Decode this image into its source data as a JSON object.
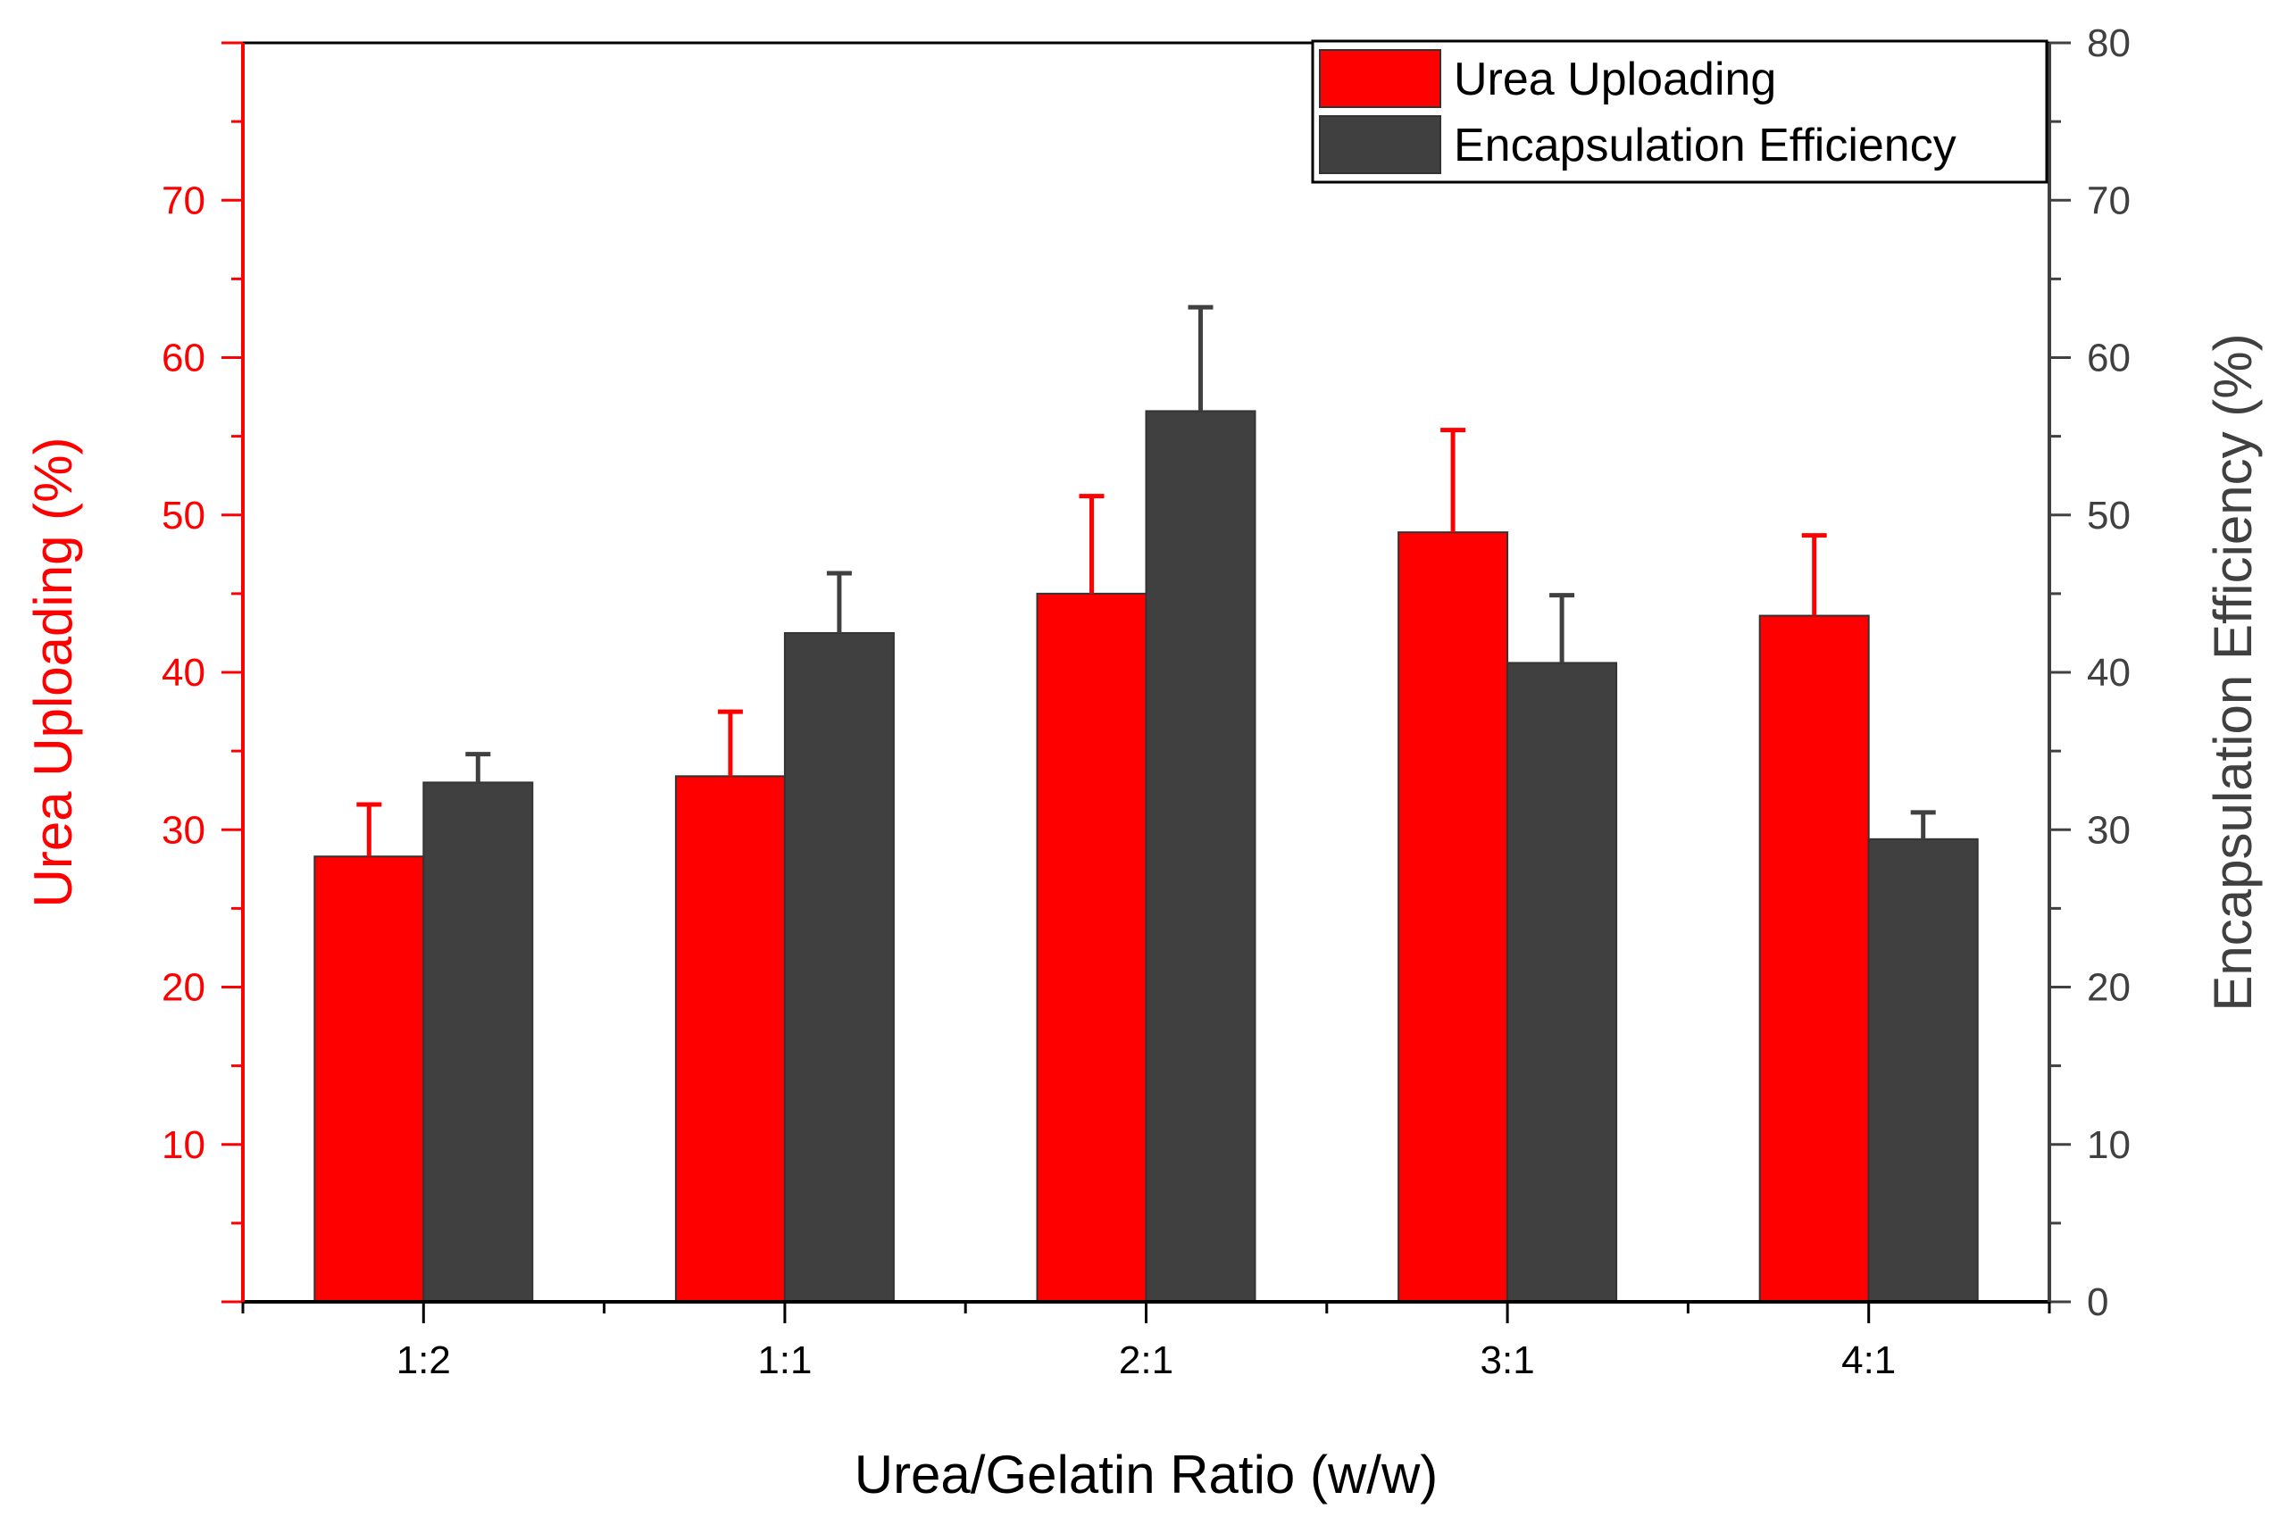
{
  "chart_data": {
    "type": "bar",
    "title": "",
    "xlabel": "Urea/Gelatin Ratio (w/w)",
    "ylabel_left": "Urea Uploading (%)",
    "ylabel_right": "Encapsulation Efficiency (%)",
    "categories": [
      "1:2",
      "1:1",
      "2:1",
      "3:1",
      "4:1"
    ],
    "ylim_left": [
      0,
      80
    ],
    "ylim_right": [
      0,
      80
    ],
    "yticks_left": [
      "10",
      "20",
      "30",
      "40",
      "50",
      "60",
      "70"
    ],
    "yticks_right": [
      "0",
      "10",
      "20",
      "30",
      "40",
      "50",
      "60",
      "70",
      "80"
    ],
    "legend_position": "top-right",
    "grid": false,
    "series": [
      {
        "name": "Urea Uploading",
        "axis": "left",
        "color": "#ff0000",
        "values": [
          28.3,
          33.4,
          45.0,
          48.9,
          43.6
        ],
        "errors": [
          3.3,
          4.1,
          6.2,
          6.5,
          5.1
        ]
      },
      {
        "name": "Encapsulation Efficiency",
        "axis": "right",
        "color": "#404040",
        "values": [
          33.0,
          42.5,
          56.6,
          40.6,
          29.4
        ],
        "errors": [
          1.8,
          3.8,
          6.6,
          4.3,
          1.7
        ]
      }
    ],
    "colors": {
      "left_axis": "#ff0000",
      "right_axis": "#404040",
      "frame": "#000000"
    }
  }
}
